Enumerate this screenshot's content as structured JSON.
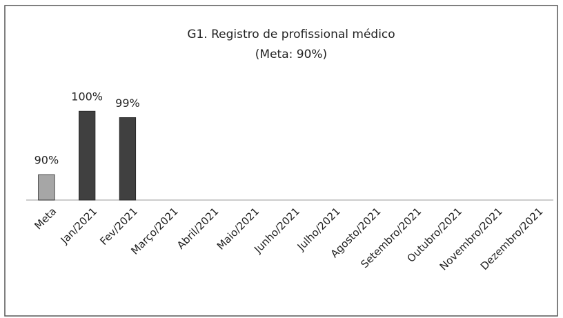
{
  "chart_data": {
    "type": "bar",
    "title": "G1. Registro de profissional médico",
    "subtitle": "(Meta: 90%)",
    "categories": [
      "Meta",
      "Jan/2021",
      "Fev/2021",
      "Março/2021",
      "Abril/2021",
      "Maio/2021",
      "Junho/2021",
      "Julho/2021",
      "Agosto/2021",
      "Setembro/2021",
      "Outubro/2021",
      "Novembro/2021",
      "Dezembro/2021"
    ],
    "values": [
      90,
      100,
      99,
      null,
      null,
      null,
      null,
      null,
      null,
      null,
      null,
      null,
      null
    ],
    "value_labels": [
      "90%",
      "100%",
      "99%",
      null,
      null,
      null,
      null,
      null,
      null,
      null,
      null,
      null,
      null
    ],
    "colors": [
      "#a6a6a6",
      "#404040",
      "#404040",
      "#404040",
      "#404040",
      "#404040",
      "#404040",
      "#404040",
      "#404040",
      "#404040",
      "#404040",
      "#404040",
      "#404040"
    ],
    "ylim": [
      86,
      101
    ]
  }
}
